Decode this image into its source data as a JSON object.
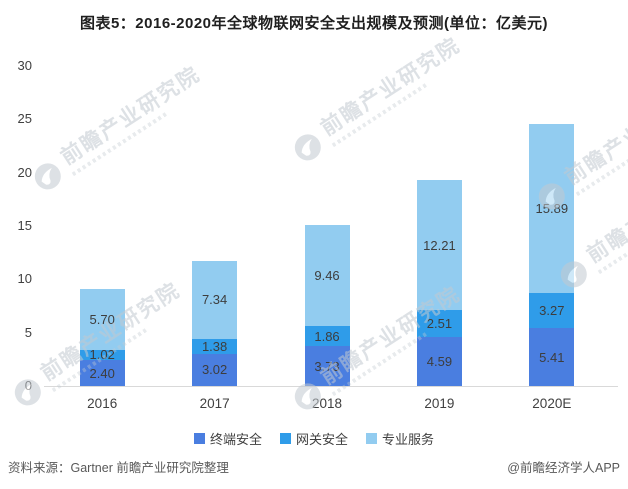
{
  "title": "图表5：2016-2020年全球物联网安全支出规模及预测(单位：亿美元)",
  "chart_data": {
    "type": "bar",
    "stacked": true,
    "title": "图表5：2016-2020年全球物联网安全支出规模及预测(单位：亿美元)",
    "unit": "亿美元",
    "categories": [
      "2016",
      "2017",
      "2018",
      "2019",
      "2020E"
    ],
    "series": [
      {
        "name": "终端安全",
        "color": "#4a7ee0",
        "values": [
          2.4,
          3.02,
          3.73,
          4.59,
          5.41
        ]
      },
      {
        "name": "网关安全",
        "color": "#2f9ce9",
        "values": [
          1.02,
          1.38,
          1.86,
          2.51,
          3.27
        ]
      },
      {
        "name": "专业服务",
        "color": "#92ccf0",
        "values": [
          5.7,
          7.34,
          9.46,
          12.21,
          15.89
        ]
      }
    ],
    "yticks": [
      0,
      5,
      10,
      15,
      20,
      25,
      30
    ],
    "ylim": [
      0,
      30
    ],
    "grid": false,
    "legend_position": "bottom",
    "value_labels": true
  },
  "footer": {
    "source": "资料来源：Gartner 前瞻产业研究院整理",
    "credit": "@前瞻经济学人APP"
  },
  "watermark": {
    "text": "前瞻产业研究院"
  },
  "colors": {
    "axis_line": "#d9d9d9",
    "axis_text": "#404040",
    "value_text": "#3d3d3d",
    "title_text": "#1f1f1f",
    "footer_text": "#595959",
    "watermark": "#c3cad1",
    "background": "#ffffff"
  }
}
